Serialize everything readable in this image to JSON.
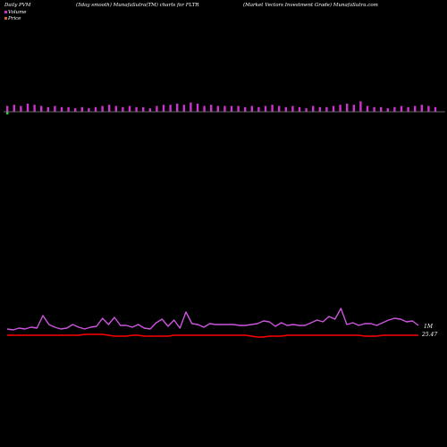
{
  "header": {
    "left": "Daily PVM",
    "center": "(5day smooth) MunafaSutra(TM) charts for FLTR",
    "right": "(Market Vectors Investment Grade) MunafaSutra.com"
  },
  "legend": [
    {
      "label": "Volume",
      "color": "#cc33cc"
    },
    {
      "label": "Price",
      "color": "#cc6633"
    }
  ],
  "colors": {
    "background": "#000000",
    "volume_bar": "#cc33cc",
    "volume_bar_down": "#33cc33",
    "baseline": "#888888",
    "pvm_line": "#cc55dd",
    "price_line": "#ff0000"
  },
  "chart_data": {
    "type": "line",
    "annotations": [
      "1M",
      "25.47"
    ],
    "series": [
      {
        "name": "Volume",
        "type": "bar",
        "values": [
          5,
          6,
          5,
          7,
          6,
          5,
          4,
          5,
          4,
          4,
          3,
          4,
          3,
          4,
          5,
          6,
          5,
          4,
          5,
          4,
          4,
          3,
          5,
          6,
          6,
          7,
          6,
          8,
          7,
          5,
          6,
          5,
          5,
          5,
          5,
          4,
          5,
          4,
          5,
          6,
          5,
          4,
          5,
          4,
          3,
          5,
          4,
          4,
          5,
          6,
          7,
          6,
          9,
          5,
          4,
          4,
          3,
          4,
          5,
          4,
          5,
          6,
          5,
          4
        ]
      },
      {
        "name": "Price",
        "type": "line",
        "values": [
          7,
          6,
          8,
          7,
          9,
          8,
          22,
          12,
          9,
          7,
          8,
          12,
          9,
          7,
          9,
          10,
          19,
          12,
          20,
          11,
          11,
          9,
          12,
          8,
          7,
          14,
          18,
          10,
          17,
          8,
          26,
          13,
          12,
          9,
          13,
          12,
          12,
          12,
          12,
          11,
          11,
          12,
          13,
          16,
          15,
          10,
          14,
          11,
          12,
          11,
          11,
          14,
          17,
          15,
          21,
          18,
          30,
          12,
          14,
          11,
          13,
          13,
          11,
          14,
          17,
          19,
          18,
          15,
          16,
          11
        ]
      },
      {
        "name": "",
        "type": "line",
        "values": [
          2,
          2,
          2,
          2,
          2,
          2,
          2,
          2,
          2,
          2,
          2,
          2,
          2,
          3,
          3,
          3,
          3,
          2,
          1,
          1,
          1,
          2,
          2,
          1,
          1,
          1,
          1,
          1,
          2,
          2,
          2,
          2,
          2,
          2,
          2,
          2,
          2,
          2,
          2,
          2,
          2,
          1,
          0,
          0,
          1,
          1,
          1,
          2,
          2,
          2,
          2,
          2,
          2,
          2,
          2,
          2,
          2,
          2,
          2,
          2,
          1,
          1,
          1,
          2,
          2,
          2,
          2,
          2,
          2,
          2
        ]
      }
    ]
  }
}
